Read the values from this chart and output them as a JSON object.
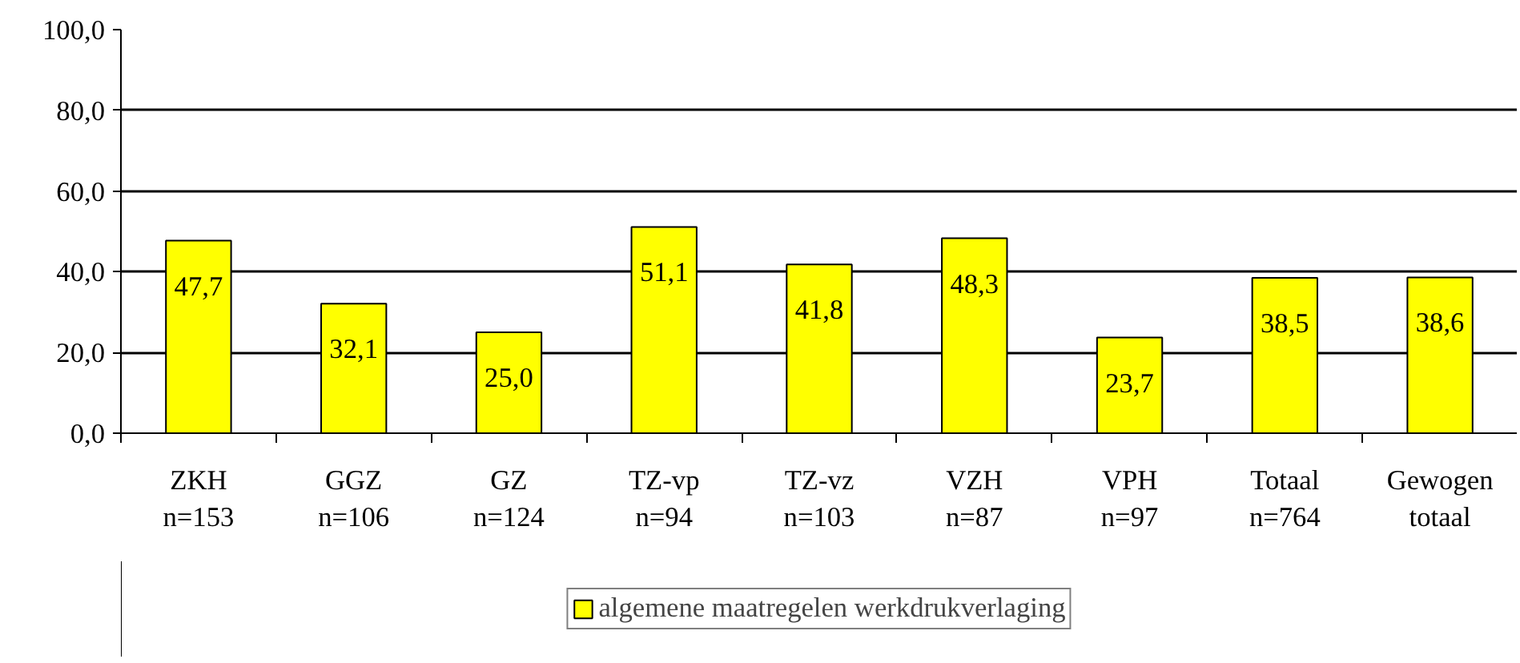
{
  "chart_data": {
    "type": "bar",
    "categories": [
      "ZKH\nn=153",
      "GGZ\nn=106",
      "GZ\nn=124",
      "TZ-vp\nn=94",
      "TZ-vz\nn=103",
      "VZH\nn=87",
      "VPH\nn=97",
      "Totaal\nn=764",
      "Gewogen\ntotaal"
    ],
    "series": [
      {
        "name": "algemene maatregelen werkdrukverlaging",
        "color": "#ffff00",
        "values": [
          47.7,
          32.1,
          25.0,
          51.1,
          41.8,
          48.3,
          23.7,
          38.5,
          38.6
        ],
        "value_labels": [
          "47,7",
          "32,1",
          "25,0",
          "51,1",
          "41,8",
          "48,3",
          "23,7",
          "38,5",
          "38,6"
        ]
      }
    ],
    "ylim": [
      0,
      100
    ],
    "yticks": [
      {
        "value": 0,
        "label": "0,0"
      },
      {
        "value": 20,
        "label": "20,0"
      },
      {
        "value": 40,
        "label": "40,0"
      },
      {
        "value": 60,
        "label": "60,0"
      },
      {
        "value": 80,
        "label": "80,0"
      },
      {
        "value": 100,
        "label": "100,0"
      }
    ],
    "grid": "y",
    "legend": "bottom"
  }
}
